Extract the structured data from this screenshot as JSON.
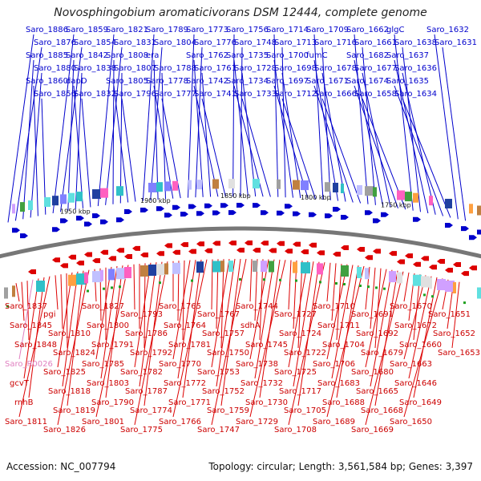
{
  "title": "Novosphingobium aromaticivorans DSM 12444, complete genome",
  "footer": {
    "accession": "Accession: NC_007794",
    "summary": "Topology: circular; Length: 3,561,584 bp; Genes: 3,397"
  },
  "colors": {
    "forward": "#0000cc",
    "reverse": "#dd0000",
    "rna": "#e080c0",
    "backbone": "#888888"
  },
  "scale_labels": [
    "1950 kbp",
    "1900 kbp",
    "1850 kbp",
    "1800 kbp",
    "1750 kbp"
  ],
  "forward_genes": [
    "Saro_1886",
    "Saro_1876",
    "Saro_1885",
    "Saro_1880",
    "Saro_1860",
    "Saro_1856",
    "Saro_1859",
    "Saro_1854",
    "Saro_1842",
    "Saro_1838",
    "dapD",
    "Saro_1832",
    "Saro_1821",
    "Saro_1831",
    "Saro_1808",
    "Saro_1807",
    "Saro_1805",
    "Saro_1796",
    "Saro_1789",
    "Saro_1804",
    "era",
    "Saro_1788",
    "Saro_1778",
    "Saro_1777",
    "Saro_1773",
    "Saro_1776",
    "Saro_1762",
    "Saro_1761",
    "Saro_1742",
    "Saro_1741",
    "Saro_1756",
    "Saro_1748",
    "Saro_1735",
    "Saro_1728",
    "Saro_1734",
    "Saro_1733",
    "Saro_1714",
    "Saro_1713",
    "Saro_1700",
    "Saro_1698",
    "Saro_1697",
    "Saro_1712",
    "Saro_1709",
    "Saro_1716",
    "fumC",
    "Saro_1678",
    "Saro_1671",
    "Saro_1666",
    "Saro_1662",
    "Saro_1661",
    "Saro_1682",
    "Saro_1677",
    "Saro_1674",
    "Saro_1658",
    "glgC",
    "Saro_1638",
    "Saro_1637",
    "Saro_1636",
    "Saro_1635",
    "Saro_1634",
    "Saro_1632",
    "Saro_1631"
  ],
  "reverse_genes": [
    "Saro_1837",
    "Saro_1845",
    "Saro_1848",
    "Saro_R0026",
    "gcvT",
    "rnhB",
    "Saro_1811",
    "pgi",
    "Saro_1810",
    "Saro_1824",
    "Saro_1825",
    "Saro_1818",
    "Saro_1819",
    "Saro_1826",
    "Saro_1827",
    "Saro_1800",
    "Saro_1791",
    "Saro_1785",
    "Saro_1803",
    "Saro_1790",
    "Saro_1801",
    "Saro_1793",
    "Saro_1786",
    "Saro_1792",
    "Saro_1782",
    "Saro_1787",
    "Saro_1774",
    "Saro_1775",
    "Saro_1765",
    "Saro_1764",
    "Saro_1781",
    "Saro_1770",
    "Saro_1772",
    "Saro_1771",
    "Saro_1766",
    "Saro_1767",
    "Saro_1757",
    "Saro_1750",
    "Saro_1753",
    "Saro_1752",
    "Saro_1759",
    "Saro_1747",
    "Saro_1744",
    "sdhA",
    "Saro_1745",
    "Saro_1738",
    "Saro_1732",
    "Saro_1730",
    "Saro_1729",
    "Saro_1727",
    "Saro_1724",
    "Saro_1722",
    "Saro_1725",
    "Saro_1717",
    "Saro_1705",
    "Saro_1708",
    "Saro_1710",
    "Saro_1711",
    "Saro_1704",
    "Saro_1706",
    "Saro_1683",
    "Saro_1688",
    "Saro_1689",
    "Saro_1691",
    "Saro_1692",
    "Saro_1679",
    "Saro_1680",
    "Saro_1665",
    "Saro_1668",
    "Saro_1669",
    "Saro_1670",
    "Saro_1672",
    "Saro_1660",
    "Saro_1663",
    "Saro_1646",
    "Saro_1649",
    "Saro_1650",
    "Saro_1651",
    "Saro_1652",
    "Saro_1653"
  ]
}
